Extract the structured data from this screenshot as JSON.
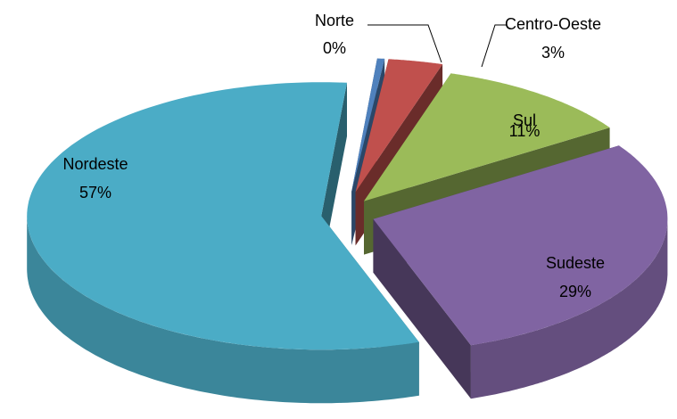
{
  "chart_data": {
    "type": "pie3d",
    "categories": [
      "Norte",
      "Centro-Oeste",
      "Sul",
      "Sudeste",
      "Nordeste"
    ],
    "values": [
      0.4,
      3,
      11,
      29,
      57
    ],
    "value_labels": [
      "0%",
      "3%",
      "11%",
      "29%",
      "57%"
    ],
    "colors": [
      "#4f81bd",
      "#c0504d",
      "#9bbb59",
      "#8064a2",
      "#4bacc6"
    ]
  }
}
